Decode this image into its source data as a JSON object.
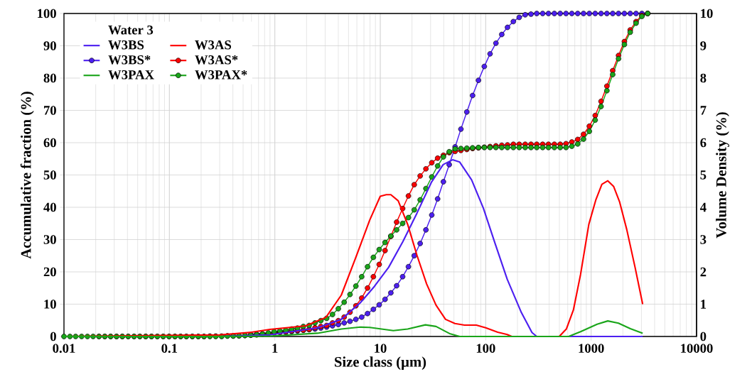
{
  "chart_data": {
    "type": "line",
    "xlabel": "Size class (µm)",
    "ylabel": "Accumulative fraction (%)",
    "y2label": "Volume Density (%)",
    "legend_title": "Water 3",
    "log": "x",
    "grid": true,
    "legend": "top left",
    "xlim": [
      0.01,
      10000
    ],
    "xticks": [
      0.01,
      0.1,
      1,
      10,
      100,
      1000,
      10000
    ],
    "ylim": [
      0,
      100
    ],
    "yticks": [
      0,
      10,
      20,
      30,
      40,
      50,
      60,
      70,
      80,
      90,
      100
    ],
    "y2lim": [
      0,
      10
    ],
    "y2ticks": [
      0,
      1,
      2,
      3,
      4,
      5,
      6,
      7,
      8,
      9,
      10
    ],
    "series": [
      {
        "name": "W3BS",
        "color": "#4c1ff0",
        "axis": "y2",
        "marker": "none",
        "x": [
          0.01,
          0.3,
          0.9,
          2.54,
          4.27,
          6.46,
          8.8,
          12.0,
          16.4,
          22.3,
          30.5,
          39.5,
          48.5,
          56.7,
          73.5,
          95.1,
          123,
          160,
          218,
          275,
          305,
          3083
        ],
        "values": [
          0,
          0,
          0.05,
          0.27,
          0.53,
          1.04,
          1.55,
          2.14,
          2.94,
          3.82,
          4.77,
          5.32,
          5.47,
          5.4,
          4.85,
          3.97,
          2.87,
          1.77,
          0.74,
          0.12,
          0,
          0
        ]
      },
      {
        "name": "W3AS",
        "color": "#ff0000",
        "axis": "y2",
        "marker": "none",
        "x": [
          0.01,
          0.3,
          0.6,
          0.9,
          1.96,
          3.05,
          4.27,
          5.82,
          7.94,
          10.0,
          11.4,
          12.6,
          14.8,
          18.2,
          22.3,
          27.5,
          33.8,
          41.6,
          51.1,
          62.9,
          81.5,
          100,
          130,
          160,
          177,
          498,
          582,
          679,
          794,
          951,
          1111,
          1265,
          1439,
          1637,
          1865,
          2178,
          2611,
          3083
        ],
        "values": [
          0,
          0.05,
          0.13,
          0.22,
          0.33,
          0.59,
          1.28,
          2.42,
          3.6,
          4.34,
          4.39,
          4.39,
          4.2,
          3.47,
          2.51,
          1.63,
          0.97,
          0.53,
          0.4,
          0.35,
          0.35,
          0.27,
          0.13,
          0.06,
          0,
          0,
          0.23,
          0.82,
          1.92,
          3.47,
          4.24,
          4.71,
          4.82,
          4.64,
          4.16,
          3.31,
          2.14,
          1.0
        ]
      },
      {
        "name": "W3BS*",
        "color": "#4c1ff0",
        "axis": "y",
        "marker": "circle",
        "values": [
          null,
          null,
          null,
          null,
          null,
          null,
          null,
          null,
          null,
          null,
          null,
          null,
          null,
          null,
          null,
          null,
          null,
          null,
          null,
          null,
          null,
          null,
          null,
          null,
          null,
          null,
          null,
          null,
          null,
          null,
          null,
          null,
          0.6,
          0.7,
          0.8,
          0.9,
          1.1,
          1.2,
          1.3,
          1.5,
          1.7,
          1.9,
          2.1,
          2.3,
          2.6,
          2.9,
          3.3,
          3.7,
          4.2,
          4.7,
          5.3,
          6.0,
          7.1,
          8.4,
          9.8,
          11.5,
          13.5,
          15.7,
          18.5,
          21.6,
          25.0,
          28.8,
          33.0,
          37.6,
          42.6,
          47.9,
          53.2,
          58.7,
          64.2,
          69.5,
          74.6,
          79.3,
          83.6,
          87.5,
          90.8,
          93.5,
          95.7,
          97.5,
          98.8,
          99.6,
          99.8,
          100,
          100,
          100,
          100,
          100,
          100,
          100,
          100,
          100,
          100,
          100,
          100,
          100,
          100,
          100,
          100,
          100,
          100,
          100,
          100
        ]
      },
      {
        "name": "W3AS*",
        "color": "#ff0000",
        "axis": "y",
        "marker": "circle",
        "values": [
          null,
          null,
          null,
          null,
          null,
          null,
          0,
          0,
          0,
          0,
          0,
          0,
          0,
          0,
          0,
          0,
          0,
          0,
          0,
          0,
          0,
          0,
          0,
          0,
          0,
          0.1,
          0.1,
          0.1,
          0.2,
          0.2,
          0.2,
          0.3,
          0.4,
          0.5,
          0.7,
          0.9,
          1.1,
          1.3,
          1.5,
          1.7,
          1.9,
          2.0,
          2.2,
          2.7,
          3.1,
          3.4,
          4.2,
          4.9,
          6.0,
          7.5,
          9.5,
          11.9,
          15.0,
          18.5,
          22.3,
          26.6,
          31.0,
          35.4,
          39.6,
          43.5,
          47.0,
          49.7,
          51.9,
          53.8,
          55.2,
          56.1,
          56.9,
          57.3,
          57.6,
          57.9,
          58.2,
          58.4,
          58.6,
          58.8,
          59.0,
          59.2,
          59.3,
          59.5,
          59.5,
          59.5,
          59.5,
          59.5,
          59.5,
          59.5,
          59.5,
          59.5,
          59.7,
          60.2,
          61.0,
          62.6,
          65.1,
          68.4,
          72.8,
          77.5,
          82.3,
          87.0,
          91.3,
          94.9,
          97.5,
          99.4,
          100
        ]
      },
      {
        "name": "W3PAX",
        "color": "#1aa51a",
        "axis": "y2",
        "marker": "none",
        "x": [
          0.01,
          0.3,
          0.9,
          2.54,
          4.27,
          6.46,
          7.94,
          13.3,
          18.2,
          26.8,
          33.8,
          46.1,
          56.7,
          612,
          794,
          1140,
          1439,
          1816,
          2355,
          3083
        ],
        "values": [
          0,
          0,
          0.01,
          0.1,
          0.23,
          0.29,
          0.28,
          0.18,
          0.23,
          0.36,
          0.31,
          0.08,
          0,
          0,
          0.15,
          0.38,
          0.48,
          0.41,
          0.24,
          0.1
        ]
      },
      {
        "name": "W3PAX*",
        "color": "#1aa51a",
        "axis": "y",
        "marker": "circle",
        "values": [
          0,
          0,
          0,
          0,
          0,
          0,
          0,
          0,
          0,
          0,
          0,
          0,
          0,
          0,
          0,
          0,
          0,
          0,
          0,
          0,
          0,
          0,
          0,
          0,
          0,
          0,
          0,
          0,
          0.1,
          0.1,
          0.2,
          0.3,
          0.4,
          0.6,
          0.8,
          1.1,
          1.5,
          1.7,
          1.9,
          2.3,
          2.6,
          3.1,
          3.4,
          4.2,
          4.9,
          5.6,
          6.8,
          8.6,
          10.6,
          13.0,
          15.6,
          18.5,
          21.6,
          24.5,
          26.9,
          29.1,
          31.1,
          33.0,
          35.0,
          36.8,
          39.2,
          42.3,
          45.8,
          49.4,
          52.8,
          55.6,
          57.2,
          58.1,
          58.2,
          58.3,
          58.4,
          58.5,
          58.5,
          58.5,
          58.5,
          58.5,
          58.5,
          58.5,
          58.5,
          58.5,
          58.5,
          58.5,
          58.5,
          58.5,
          58.5,
          58.5,
          58.5,
          58.9,
          59.6,
          61.1,
          63.5,
          67.0,
          71.2,
          76.1,
          81.1,
          86.0,
          90.4,
          94.2,
          97.0,
          99.1,
          100
        ]
      }
    ],
    "x": [
      0.01,
      0.0114,
      0.0129,
      0.0147,
      0.0167,
      0.0189,
      0.0215,
      0.0244,
      0.0277,
      0.0315,
      0.0358,
      0.0407,
      0.0462,
      0.0524,
      0.0596,
      0.0677,
      0.0769,
      0.0873,
      0.0992,
      0.113,
      0.128,
      0.145,
      0.165,
      0.188,
      0.213,
      0.242,
      0.275,
      0.313,
      0.355,
      0.403,
      0.458,
      0.521,
      0.591,
      0.672,
      0.763,
      0.867,
      0.985,
      1.118,
      1.271,
      1.443,
      1.64,
      1.863,
      2.116,
      2.404,
      2.731,
      3.101,
      3.524,
      4.002,
      4.547,
      5.166,
      5.868,
      6.666,
      7.572,
      8.603,
      9.77,
      11.1,
      12.6,
      14.3,
      16.3,
      18.5,
      21.0,
      23.9,
      27.1,
      30.8,
      35.0,
      39.7,
      45.1,
      51.3,
      58.2,
      66.2,
      75.1,
      85.4,
      97.0,
      110,
      125,
      142,
      161,
      183,
      208,
      237,
      269,
      305,
      347,
      394,
      448,
      509,
      578,
      656,
      746,
      847,
      962,
      1093,
      1242,
      1411,
      1602,
      1820,
      2068,
      2349,
      2668,
      3030,
      3443
    ]
  }
}
